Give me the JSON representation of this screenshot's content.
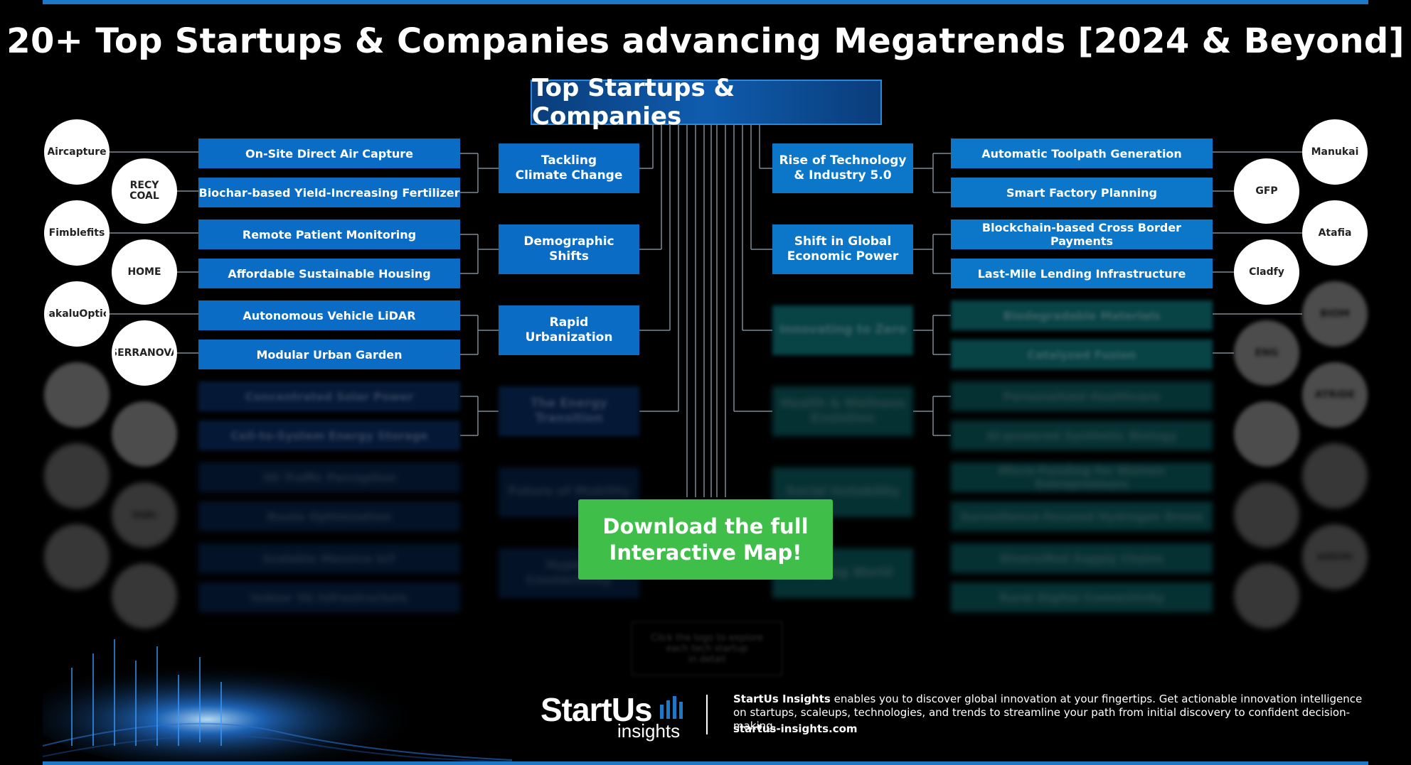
{
  "title": "20+ Top Startups & Companies advancing Megatrends [2024 & Beyond]",
  "center_title": "Top Startups & Companies",
  "left_trends": [
    {
      "label": "Tackling\nClimate Change",
      "subs": [
        "On-Site Direct Air Capture",
        "Biochar-based Yield-Increasing Fertilizer"
      ],
      "logos": [
        "Aircapture",
        "RECY\nCOAL"
      ]
    },
    {
      "label": "Demographic\nShifts",
      "subs": [
        "Remote Patient Monitoring",
        "Affordable Sustainable Housing"
      ],
      "logos": [
        "Fimblefits",
        "HOME"
      ]
    },
    {
      "label": "Rapid\nUrbanization",
      "subs": [
        "Autonomous Vehicle LiDAR",
        "Modular Urban Garden"
      ],
      "logos": [
        "MakaluOptics",
        "SERRANOVA"
      ]
    },
    {
      "label": "The Energy\nTransition",
      "subs": [
        "Concentrated Solar Power",
        "Cell-to-System Energy Storage"
      ],
      "logos": [
        "",
        ""
      ]
    },
    {
      "label": "Future of Mobility",
      "subs": [
        "3D Traffic Perception",
        "Route Optimization"
      ],
      "logos": [
        "",
        "iodo"
      ]
    },
    {
      "label": "Hyper-Connectivity",
      "subs": [
        "Scalable Massive IoT",
        "Indoor 5G Infrastructure"
      ],
      "logos": [
        "",
        ""
      ]
    }
  ],
  "right_trends": [
    {
      "label": "Rise of Technology\n& Industry 5.0",
      "subs": [
        "Automatic Toolpath Generation",
        "Smart Factory Planning"
      ],
      "logos": [
        "Manukai",
        "GFP"
      ]
    },
    {
      "label": "Shift in Global\nEconomic Power",
      "subs": [
        "Blockchain-based Cross Border Payments",
        "Last-Mile Lending Infrastructure"
      ],
      "logos": [
        "Atafia",
        "Cladfy"
      ]
    },
    {
      "label": "Innovating to Zero",
      "subs": [
        "Biodegradable Materials",
        "Catalyzed Fusion"
      ],
      "logos": [
        "BIOM",
        "ENG"
      ]
    },
    {
      "label": "Health & Wellness\nEvolution",
      "subs": [
        "Personalized Healthcare",
        "AI-powered Synthetic Biology"
      ],
      "logos": [
        "ATRIDE",
        ""
      ]
    },
    {
      "label": "Social Instability",
      "subs": [
        "Micro-Funding for Women Entrepreneurs",
        "Surveillance-focused Hydrogen Drone"
      ],
      "logos": [
        "",
        ""
      ]
    },
    {
      "label": "Shaping World",
      "subs": [
        "Diversified Supply Chains",
        "Rural Digital Connectivity"
      ],
      "logos": [
        "entvin",
        ""
      ]
    }
  ],
  "cta": "Download the full\nInteractive Map!",
  "hint": "Click the logo to explore\neach tech startup\nin detail",
  "footer": {
    "brand": "StartUs",
    "brand_sub": "insights",
    "text_bold": "StartUs Insights",
    "text": "enables you to discover global innovation at your fingertips. Get actionable innovation intelligence on startups, scaleups, technologies, and trends to streamline your path from initial discovery to confident decision-making.",
    "url": "startus-insights.com"
  },
  "colors": {
    "primary": "#0a6cc4",
    "teal": "#0f7a80",
    "cta": "#3fbf4a",
    "accent": "#1e78c8"
  }
}
